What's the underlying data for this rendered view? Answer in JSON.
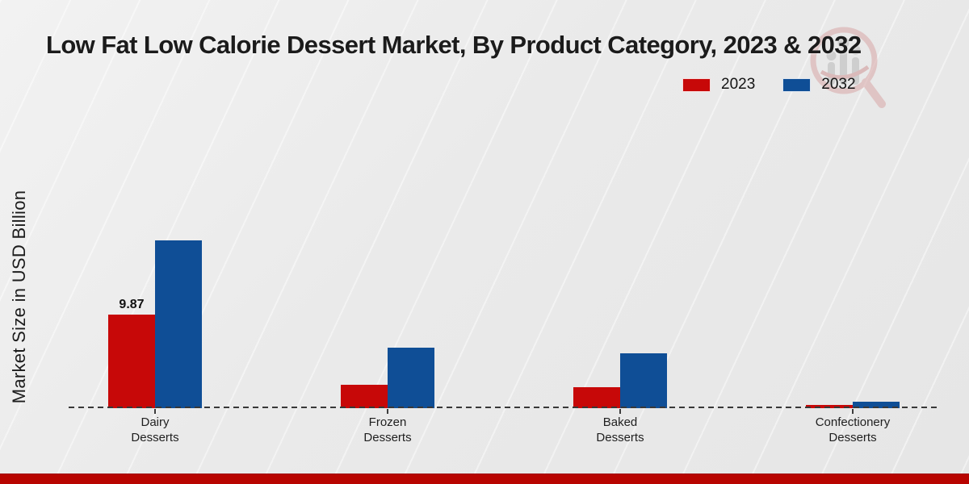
{
  "title": "Low Fat Low Calorie Dessert Market, By Product Category, 2023 & 2032",
  "ylabel": "Market Size in USD Billion",
  "legend": {
    "position": "top-right",
    "items": [
      {
        "label": "2023",
        "color": "#c70808"
      },
      {
        "label": "2032",
        "color": "#0f4e96"
      }
    ]
  },
  "chart_data": {
    "type": "bar",
    "categories": [
      "Dairy Desserts",
      "Frozen Desserts",
      "Baked Desserts",
      "Confectionery Desserts"
    ],
    "series": [
      {
        "name": "2023",
        "color": "#c70808",
        "values": [
          9.87,
          2.5,
          2.2,
          0.35
        ],
        "point_labels": [
          "9.87",
          null,
          null,
          null
        ]
      },
      {
        "name": "2032",
        "color": "#0f4e96",
        "values": [
          17.7,
          6.4,
          5.8,
          0.65
        ],
        "point_labels": [
          null,
          null,
          null,
          null
        ]
      }
    ],
    "title": "Low Fat Low Calorie Dessert Market, By Product Category, 2023 & 2032",
    "xlabel": "",
    "ylabel": "Market Size in USD Billion",
    "ylim": [
      0,
      18.5
    ],
    "grid": false,
    "legend_position": "top-right",
    "baseline_style": "dashed-zero-line",
    "y_axis_ticks_visible": false
  },
  "icons": {
    "watermark": "magnifier-bar-chart-logo"
  },
  "colors": {
    "background": "#eaeaea",
    "baseline": "#383838",
    "footer_band": "#b80400",
    "title_text": "#1b1b1b"
  }
}
